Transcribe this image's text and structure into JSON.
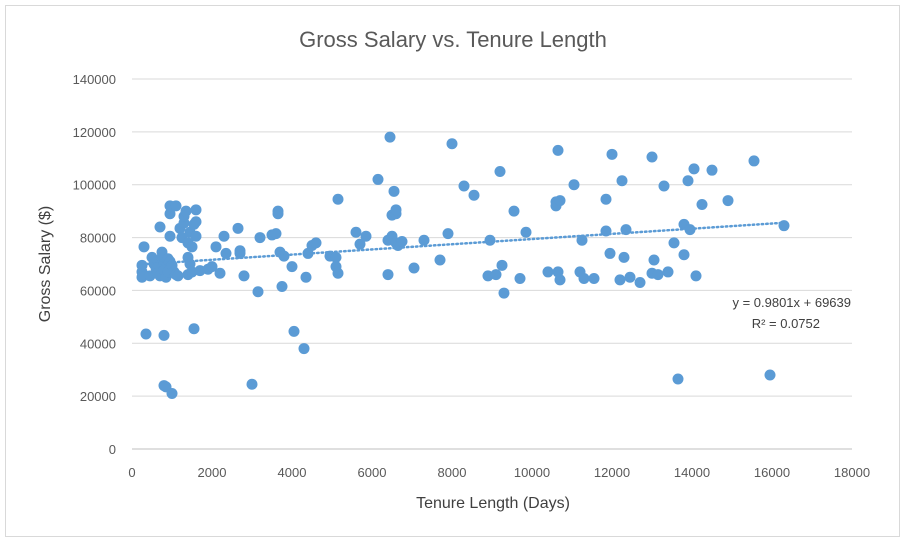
{
  "chart_data": {
    "type": "scatter",
    "title": "Gross Salary vs. Tenure Length",
    "xlabel": "Tenure Length (Days)",
    "ylabel": "Gross Salary ($)",
    "xlim": [
      0,
      18000
    ],
    "ylim": [
      0,
      140000
    ],
    "x_ticks": [
      0,
      2000,
      4000,
      6000,
      8000,
      10000,
      12000,
      14000,
      16000,
      18000
    ],
    "y_ticks": [
      0,
      20000,
      40000,
      60000,
      80000,
      100000,
      120000,
      140000
    ],
    "grid": "horizontal",
    "legend": "none",
    "point_color": "#5b9bd5",
    "trendline": {
      "type": "linear",
      "slope": 0.9801,
      "intercept": 69639,
      "x_range": [
        250,
        16300
      ],
      "style": "dotted",
      "color": "#5b9bd5",
      "equation_label": "y = 0.9801x + 69639",
      "r2_label": "R² = 0.0752"
    },
    "points": [
      [
        250,
        69500
      ],
      [
        250,
        67000
      ],
      [
        250,
        65000
      ],
      [
        300,
        76500
      ],
      [
        350,
        43500
      ],
      [
        450,
        65500
      ],
      [
        500,
        72500
      ],
      [
        550,
        70000
      ],
      [
        600,
        68500
      ],
      [
        650,
        66500
      ],
      [
        700,
        65500
      ],
      [
        700,
        84000
      ],
      [
        750,
        74500
      ],
      [
        750,
        72500
      ],
      [
        800,
        70000
      ],
      [
        800,
        67500
      ],
      [
        850,
        65000
      ],
      [
        800,
        43000
      ],
      [
        800,
        24000
      ],
      [
        850,
        23500
      ],
      [
        900,
        67000
      ],
      [
        900,
        72000
      ],
      [
        950,
        71000
      ],
      [
        950,
        80500
      ],
      [
        950,
        89000
      ],
      [
        950,
        92000
      ],
      [
        1000,
        21000
      ],
      [
        1000,
        69500
      ],
      [
        1050,
        67000
      ],
      [
        1100,
        92000
      ],
      [
        1100,
        66000
      ],
      [
        1150,
        65500
      ],
      [
        1200,
        83500
      ],
      [
        1250,
        80000
      ],
      [
        1300,
        85500
      ],
      [
        1300,
        88000
      ],
      [
        1350,
        90000
      ],
      [
        1400,
        78000
      ],
      [
        1400,
        72500
      ],
      [
        1400,
        66000
      ],
      [
        1450,
        70000
      ],
      [
        1450,
        82000
      ],
      [
        1500,
        76500
      ],
      [
        1500,
        67000
      ],
      [
        1550,
        85000
      ],
      [
        1550,
        45500
      ],
      [
        1600,
        90500
      ],
      [
        1600,
        80500
      ],
      [
        1600,
        86000
      ],
      [
        1700,
        67500
      ],
      [
        1900,
        68000
      ],
      [
        2000,
        69000
      ],
      [
        2100,
        76500
      ],
      [
        2200,
        66500
      ],
      [
        2300,
        80500
      ],
      [
        2350,
        74000
      ],
      [
        2650,
        83500
      ],
      [
        2700,
        74000
      ],
      [
        2700,
        75000
      ],
      [
        2800,
        65500
      ],
      [
        3000,
        24500
      ],
      [
        3150,
        59500
      ],
      [
        3200,
        80000
      ],
      [
        3500,
        81000
      ],
      [
        3600,
        81500
      ],
      [
        3650,
        90000
      ],
      [
        3650,
        89000
      ],
      [
        3700,
        74500
      ],
      [
        3750,
        61500
      ],
      [
        3800,
        73000
      ],
      [
        4000,
        69000
      ],
      [
        4050,
        44500
      ],
      [
        4300,
        38000
      ],
      [
        4350,
        65000
      ],
      [
        4400,
        74000
      ],
      [
        4500,
        77000
      ],
      [
        4600,
        78000
      ],
      [
        4950,
        73000
      ],
      [
        5100,
        72500
      ],
      [
        5100,
        69000
      ],
      [
        5150,
        66500
      ],
      [
        5150,
        94500
      ],
      [
        5600,
        82000
      ],
      [
        5700,
        77500
      ],
      [
        5850,
        80500
      ],
      [
        6150,
        102000
      ],
      [
        6400,
        66000
      ],
      [
        6400,
        79000
      ],
      [
        6450,
        118000
      ],
      [
        6500,
        88500
      ],
      [
        6500,
        80500
      ],
      [
        6550,
        97500
      ],
      [
        6600,
        89000
      ],
      [
        6600,
        90500
      ],
      [
        6600,
        78000
      ],
      [
        6650,
        77000
      ],
      [
        6750,
        78500
      ],
      [
        7050,
        68500
      ],
      [
        7300,
        79000
      ],
      [
        7700,
        71500
      ],
      [
        7900,
        81500
      ],
      [
        8000,
        115500
      ],
      [
        8300,
        99500
      ],
      [
        8550,
        96000
      ],
      [
        8900,
        65500
      ],
      [
        8950,
        79000
      ],
      [
        9100,
        66000
      ],
      [
        9200,
        105000
      ],
      [
        9250,
        69500
      ],
      [
        9300,
        59000
      ],
      [
        9550,
        90000
      ],
      [
        9700,
        64500
      ],
      [
        9850,
        82000
      ],
      [
        10400,
        67000
      ],
      [
        10600,
        93500
      ],
      [
        10600,
        92000
      ],
      [
        10650,
        113000
      ],
      [
        10650,
        67000
      ],
      [
        10700,
        64000
      ],
      [
        10700,
        94000
      ],
      [
        11050,
        100000
      ],
      [
        11200,
        67000
      ],
      [
        11250,
        79000
      ],
      [
        11300,
        64500
      ],
      [
        11550,
        64500
      ],
      [
        11850,
        94500
      ],
      [
        11850,
        82500
      ],
      [
        11950,
        74000
      ],
      [
        12000,
        111500
      ],
      [
        12200,
        64000
      ],
      [
        12250,
        101500
      ],
      [
        12300,
        72500
      ],
      [
        12350,
        83000
      ],
      [
        12450,
        65000
      ],
      [
        12700,
        63000
      ],
      [
        13000,
        110500
      ],
      [
        13000,
        66500
      ],
      [
        13050,
        71500
      ],
      [
        13150,
        66000
      ],
      [
        13300,
        99500
      ],
      [
        13400,
        67000
      ],
      [
        13550,
        78000
      ],
      [
        13650,
        26500
      ],
      [
        13800,
        85000
      ],
      [
        13800,
        73500
      ],
      [
        13900,
        101500
      ],
      [
        13950,
        83000
      ],
      [
        14050,
        106000
      ],
      [
        14100,
        65500
      ],
      [
        14250,
        92500
      ],
      [
        14500,
        105500
      ],
      [
        14900,
        94000
      ],
      [
        15550,
        109000
      ],
      [
        15950,
        28000
      ],
      [
        16300,
        84500
      ]
    ]
  }
}
